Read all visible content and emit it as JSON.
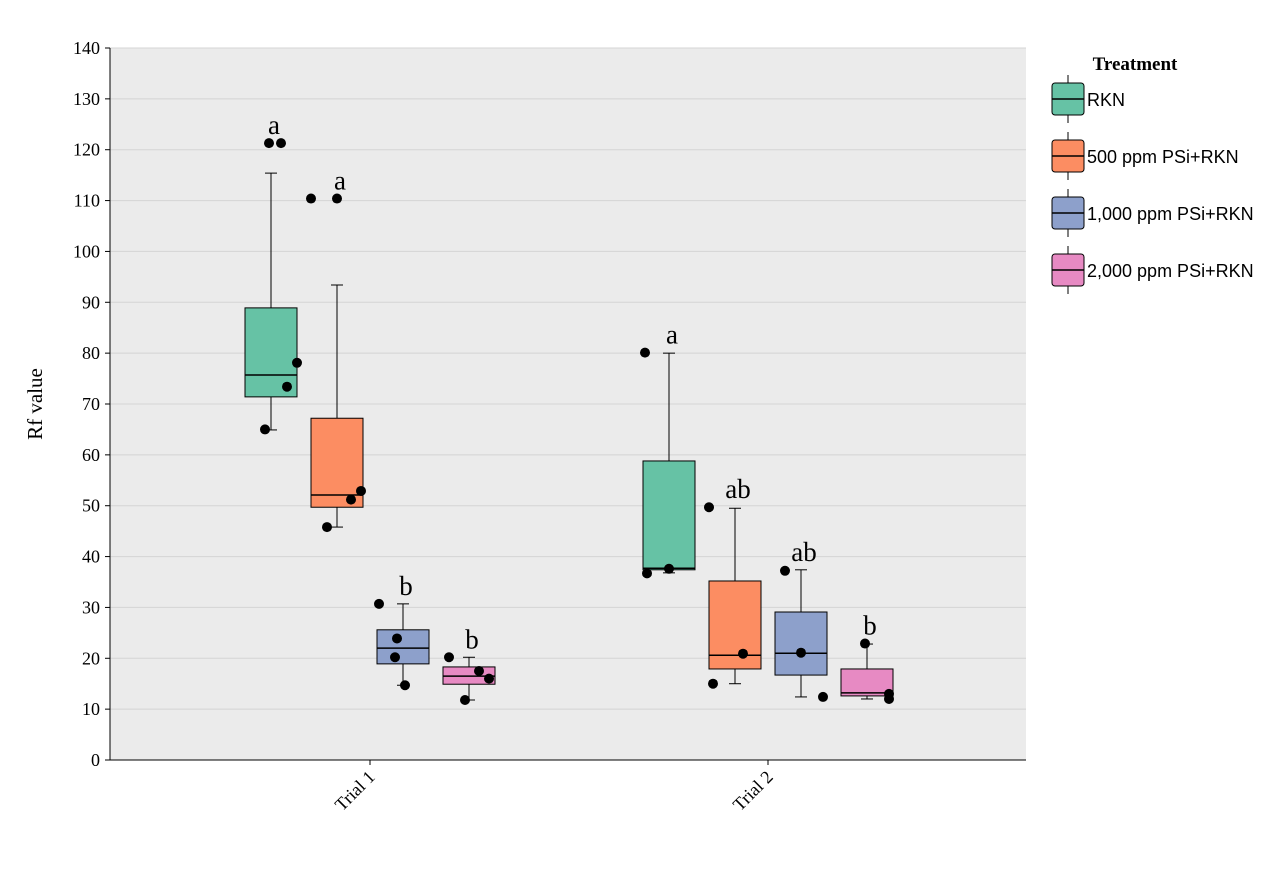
{
  "chart_data": {
    "type": "box",
    "ylabel": "Rf value",
    "xlabel": "",
    "ylim": [
      0,
      140
    ],
    "yticks": [
      0,
      10,
      20,
      30,
      40,
      50,
      60,
      70,
      80,
      90,
      100,
      110,
      120,
      130,
      140
    ],
    "grid": true,
    "categories": [
      "Trial 1",
      "Trial 2"
    ],
    "legend": {
      "title": "Treatment",
      "placement": "right",
      "entries": [
        "RKN",
        "500 ppm PSi+RKN",
        "1,000 ppm PSi+RKN",
        "2,000 ppm PSi+RKN"
      ]
    },
    "colors": [
      "#66c2a5",
      "#fc8d62",
      "#8da0cb",
      "#e78ac3"
    ],
    "series": [
      {
        "name": "RKN",
        "boxes": [
          {
            "category": "Trial 1",
            "q1": 71.4,
            "median": 75.7,
            "q3": 88.9,
            "whisker_low": 64.9,
            "whisker_high": 115.4,
            "points": [
              121.3,
              121.3,
              78.1,
              73.4,
              65.0
            ],
            "letter": "a"
          },
          {
            "category": "Trial 2",
            "q1": 37.4,
            "median": 37.7,
            "q3": 58.8,
            "whisker_low": 36.8,
            "whisker_high": 80.0,
            "points": [
              80.1,
              37.6,
              36.7
            ],
            "letter": "a"
          }
        ]
      },
      {
        "name": "500 ppm PSi+RKN",
        "boxes": [
          {
            "category": "Trial 1",
            "q1": 49.7,
            "median": 52.1,
            "q3": 67.2,
            "whisker_low": 45.8,
            "whisker_high": 93.4,
            "points": [
              110.4,
              110.4,
              52.9,
              51.2,
              45.8
            ],
            "letter": "a"
          },
          {
            "category": "Trial 2",
            "q1": 17.9,
            "median": 20.6,
            "q3": 35.2,
            "whisker_low": 15.0,
            "whisker_high": 49.5,
            "points": [
              49.7,
              20.9,
              15.0
            ],
            "letter": "ab"
          }
        ]
      },
      {
        "name": "1,000 ppm PSi+RKN",
        "boxes": [
          {
            "category": "Trial 1",
            "q1": 18.9,
            "median": 22.0,
            "q3": 25.6,
            "whisker_low": 14.7,
            "whisker_high": 30.7,
            "points": [
              30.7,
              23.9,
              20.2,
              14.7
            ],
            "letter": "b"
          },
          {
            "category": "Trial 2",
            "q1": 16.7,
            "median": 21.0,
            "q3": 29.1,
            "whisker_low": 12.4,
            "whisker_high": 37.4,
            "points": [
              37.2,
              21.1,
              12.4
            ],
            "letter": "ab"
          }
        ]
      },
      {
        "name": "2,000 ppm PSi+RKN",
        "boxes": [
          {
            "category": "Trial 1",
            "q1": 14.9,
            "median": 16.5,
            "q3": 18.3,
            "whisker_low": 11.8,
            "whisker_high": 20.2,
            "points": [
              20.2,
              17.5,
              16.0,
              11.8
            ],
            "letter": "b"
          },
          {
            "category": "Trial 2",
            "q1": 12.6,
            "median": 13.2,
            "q3": 17.9,
            "whisker_low": 12.0,
            "whisker_high": 22.8,
            "points": [
              22.9,
              13.0,
              12.0
            ],
            "letter": "b"
          }
        ]
      }
    ]
  }
}
